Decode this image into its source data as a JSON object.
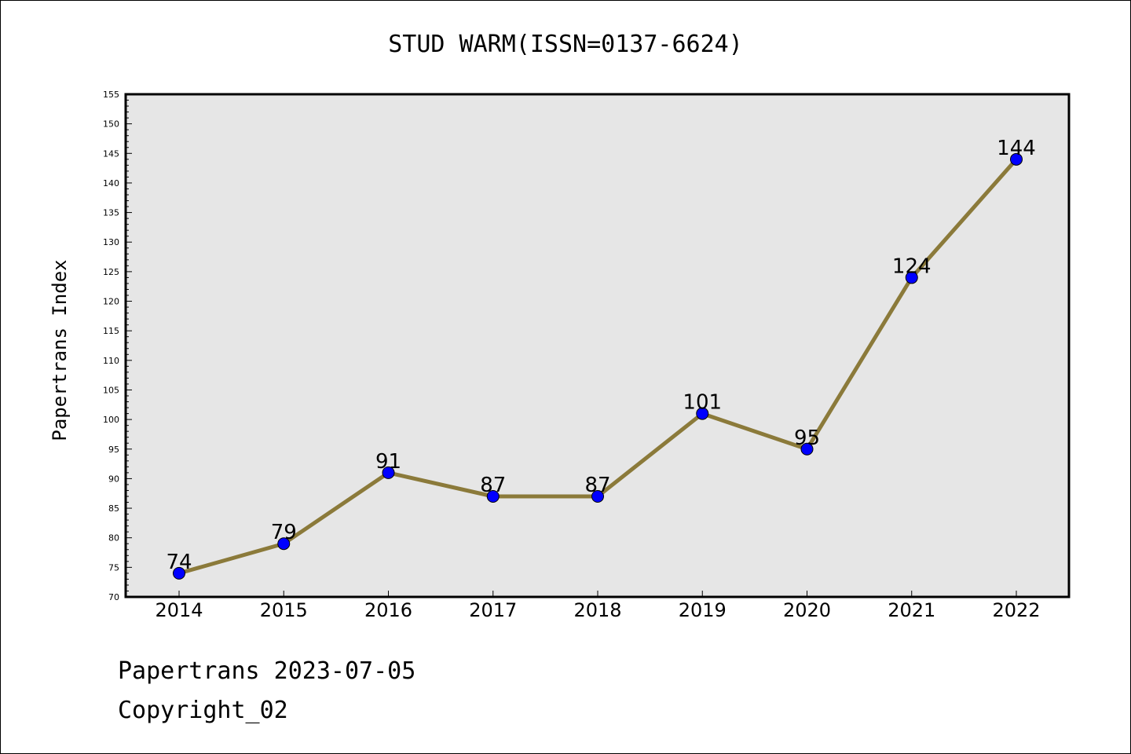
{
  "chart_data": {
    "type": "line",
    "title": "STUD WARM(ISSN=0137-6624)",
    "ylabel": "Papertrans Index",
    "xlabel": "",
    "categories": [
      "2014",
      "2015",
      "2016",
      "2017",
      "2018",
      "2019",
      "2020",
      "2021",
      "2022"
    ],
    "series": [
      {
        "values": [
          74,
          79,
          91,
          87,
          87,
          101,
          95,
          124,
          144
        ]
      }
    ],
    "ylim": [
      70,
      155
    ],
    "yticks": [
      70,
      75,
      80,
      85,
      90,
      95,
      100,
      105,
      110,
      115,
      120,
      125,
      130,
      135,
      140,
      145,
      150,
      155
    ],
    "grid": false,
    "legend": "none",
    "colors": {
      "line": "#8b7a3a",
      "marker": "#0000ff",
      "plot_background": "#e6e6e6"
    }
  },
  "footer": {
    "line1": "Papertrans 2023-07-05",
    "line2": "Copyright_02"
  }
}
